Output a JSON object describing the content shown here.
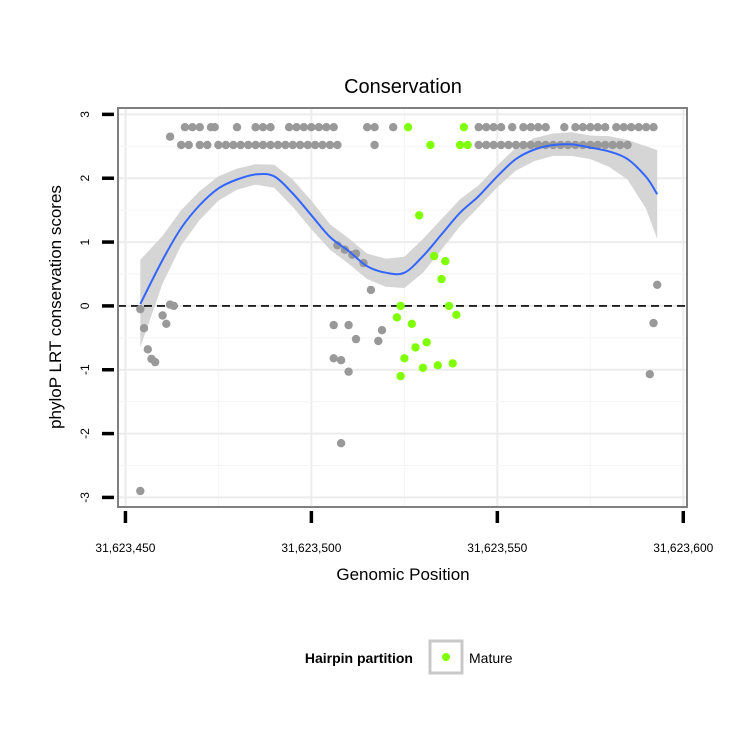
{
  "chart_data": {
    "type": "scatter",
    "title": "Conservation",
    "xlabel": "Genomic Position",
    "ylabel": "phyloP LRT conservation scores",
    "xlim": [
      31623448,
      31623601
    ],
    "ylim": [
      -3.15,
      3.1
    ],
    "x_ticks": [
      31623450,
      31623500,
      31623550,
      31623600
    ],
    "x_tick_labels": [
      "31,623,450",
      "31,623,500",
      "31,623,550",
      "31,623,600"
    ],
    "y_ticks": [
      -3,
      -2,
      -1,
      0,
      1,
      2,
      3
    ],
    "y_tick_labels": [
      "-3",
      "-2",
      "-1",
      "0",
      "1",
      "2",
      "3"
    ],
    "grid": true,
    "reference_line": {
      "y": 0,
      "style": "dashed"
    },
    "colors": {
      "other": "#999999",
      "mature": "#7fff00",
      "smooth": "#3366ff",
      "ribbon": "#d3d3d3",
      "panel_border": "#7f7f7f"
    },
    "legend": {
      "title": "Hairpin partition",
      "entries": [
        "Mature"
      ],
      "position": "bottom"
    },
    "smooth_line": {
      "x": [
        31623454,
        31623460,
        31623465,
        31623470,
        31623475,
        31623480,
        31623485,
        31623490,
        31623495,
        31623500,
        31623505,
        31623510,
        31623515,
        31623520,
        31623525,
        31623530,
        31623535,
        31623540,
        31623545,
        31623550,
        31623555,
        31623560,
        31623565,
        31623570,
        31623575,
        31623580,
        31623585,
        31623590,
        31623593
      ],
      "y": [
        0.03,
        0.72,
        1.22,
        1.58,
        1.84,
        1.98,
        2.06,
        2.03,
        1.76,
        1.42,
        1.08,
        0.86,
        0.62,
        0.52,
        0.52,
        0.78,
        1.12,
        1.46,
        1.72,
        2.03,
        2.3,
        2.45,
        2.52,
        2.53,
        2.48,
        2.42,
        2.3,
        2.02,
        1.75
      ]
    },
    "smooth_ribbon": {
      "x": [
        31623454,
        31623460,
        31623465,
        31623470,
        31623475,
        31623480,
        31623485,
        31623490,
        31623495,
        31623500,
        31623505,
        31623510,
        31623515,
        31623520,
        31623525,
        31623530,
        31623535,
        31623540,
        31623545,
        31623550,
        31623555,
        31623560,
        31623565,
        31623570,
        31623575,
        31623580,
        31623585,
        31623590,
        31623593
      ],
      "ymin": [
        -0.65,
        0.35,
        0.95,
        1.35,
        1.65,
        1.82,
        1.9,
        1.85,
        1.55,
        1.2,
        0.88,
        0.66,
        0.42,
        0.3,
        0.28,
        0.52,
        0.88,
        1.25,
        1.55,
        1.86,
        2.12,
        2.27,
        2.35,
        2.35,
        2.3,
        2.18,
        1.98,
        1.52,
        1.05
      ],
      "ymax": [
        0.72,
        1.1,
        1.5,
        1.8,
        2.03,
        2.15,
        2.22,
        2.21,
        1.98,
        1.65,
        1.28,
        1.06,
        0.82,
        0.74,
        0.77,
        1.05,
        1.36,
        1.67,
        1.89,
        2.2,
        2.48,
        2.63,
        2.7,
        2.72,
        2.67,
        2.66,
        2.6,
        2.5,
        2.44
      ]
    },
    "series": [
      {
        "name": "",
        "points": [
          [
            31623462,
            2.65
          ],
          [
            31623466,
            2.8
          ],
          [
            31623468,
            2.8
          ],
          [
            31623470,
            2.8
          ],
          [
            31623473,
            2.8
          ],
          [
            31623474,
            2.8
          ],
          [
            31623480,
            2.8
          ],
          [
            31623485,
            2.8
          ],
          [
            31623487,
            2.8
          ],
          [
            31623489,
            2.8
          ],
          [
            31623494,
            2.8
          ],
          [
            31623496,
            2.8
          ],
          [
            31623498,
            2.8
          ],
          [
            31623500,
            2.8
          ],
          [
            31623502,
            2.8
          ],
          [
            31623504,
            2.8
          ],
          [
            31623506,
            2.8
          ],
          [
            31623515,
            2.8
          ],
          [
            31623517,
            2.8
          ],
          [
            31623522,
            2.8
          ],
          [
            31623545,
            2.8
          ],
          [
            31623547,
            2.8
          ],
          [
            31623549,
            2.8
          ],
          [
            31623551,
            2.8
          ],
          [
            31623554,
            2.8
          ],
          [
            31623557,
            2.8
          ],
          [
            31623559,
            2.8
          ],
          [
            31623561,
            2.8
          ],
          [
            31623563,
            2.8
          ],
          [
            31623568,
            2.8
          ],
          [
            31623571,
            2.8
          ],
          [
            31623573,
            2.8
          ],
          [
            31623575,
            2.8
          ],
          [
            31623577,
            2.8
          ],
          [
            31623579,
            2.8
          ],
          [
            31623582,
            2.8
          ],
          [
            31623584,
            2.8
          ],
          [
            31623586,
            2.8
          ],
          [
            31623588,
            2.8
          ],
          [
            31623590,
            2.8
          ],
          [
            31623592,
            2.8
          ],
          [
            31623465,
            2.52
          ],
          [
            31623467,
            2.52
          ],
          [
            31623470,
            2.52
          ],
          [
            31623472,
            2.52
          ],
          [
            31623475,
            2.52
          ],
          [
            31623477,
            2.52
          ],
          [
            31623479,
            2.52
          ],
          [
            31623481,
            2.52
          ],
          [
            31623483,
            2.52
          ],
          [
            31623485,
            2.52
          ],
          [
            31623487,
            2.52
          ],
          [
            31623489,
            2.52
          ],
          [
            31623491,
            2.52
          ],
          [
            31623493,
            2.52
          ],
          [
            31623495,
            2.52
          ],
          [
            31623497,
            2.52
          ],
          [
            31623499,
            2.52
          ],
          [
            31623501,
            2.52
          ],
          [
            31623503,
            2.52
          ],
          [
            31623505,
            2.52
          ],
          [
            31623507,
            2.52
          ],
          [
            31623517,
            2.52
          ],
          [
            31623545,
            2.52
          ],
          [
            31623547,
            2.52
          ],
          [
            31623549,
            2.52
          ],
          [
            31623551,
            2.52
          ],
          [
            31623553,
            2.52
          ],
          [
            31623555,
            2.52
          ],
          [
            31623557,
            2.52
          ],
          [
            31623559,
            2.52
          ],
          [
            31623561,
            2.52
          ],
          [
            31623563,
            2.52
          ],
          [
            31623565,
            2.52
          ],
          [
            31623567,
            2.52
          ],
          [
            31623569,
            2.52
          ],
          [
            31623571,
            2.52
          ],
          [
            31623573,
            2.52
          ],
          [
            31623575,
            2.52
          ],
          [
            31623577,
            2.52
          ],
          [
            31623579,
            2.52
          ],
          [
            31623581,
            2.52
          ],
          [
            31623583,
            2.52
          ],
          [
            31623585,
            2.52
          ],
          [
            31623462,
            0.02
          ],
          [
            31623463,
            0.0
          ],
          [
            31623454,
            -0.05
          ],
          [
            31623455,
            -0.35
          ],
          [
            31623456,
            -0.68
          ],
          [
            31623457,
            -0.83
          ],
          [
            31623458,
            -0.88
          ],
          [
            31623460,
            -0.15
          ],
          [
            31623461,
            -0.28
          ],
          [
            31623507,
            0.95
          ],
          [
            31623509,
            0.88
          ],
          [
            31623511,
            0.8
          ],
          [
            31623512,
            0.82
          ],
          [
            31623514,
            0.67
          ],
          [
            31623516,
            0.25
          ],
          [
            31623506,
            -0.3
          ],
          [
            31623510,
            -0.3
          ],
          [
            31623512,
            -0.52
          ],
          [
            31623506,
            -0.82
          ],
          [
            31623508,
            -0.85
          ],
          [
            31623510,
            -1.03
          ],
          [
            31623508,
            -2.15
          ],
          [
            31623518,
            -0.55
          ],
          [
            31623519,
            -0.38
          ],
          [
            31623454,
            -2.9
          ],
          [
            31623593,
            0.33
          ],
          [
            31623592,
            -0.27
          ],
          [
            31623591,
            -1.07
          ]
        ]
      },
      {
        "name": "Mature",
        "points": [
          [
            31623526,
            2.8
          ],
          [
            31623541,
            2.8
          ],
          [
            31623532,
            2.52
          ],
          [
            31623540,
            2.52
          ],
          [
            31623542,
            2.52
          ],
          [
            31623529,
            1.42
          ],
          [
            31623533,
            0.78
          ],
          [
            31623536,
            0.7
          ],
          [
            31623535,
            0.42
          ],
          [
            31623524,
            0.0
          ],
          [
            31623537,
            0.0
          ],
          [
            31623523,
            -0.18
          ],
          [
            31623539,
            -0.14
          ],
          [
            31623527,
            -0.28
          ],
          [
            31623531,
            -0.57
          ],
          [
            31623528,
            -0.65
          ],
          [
            31623525,
            -0.82
          ],
          [
            31623538,
            -0.9
          ],
          [
            31623534,
            -0.93
          ],
          [
            31623530,
            -0.97
          ],
          [
            31623524,
            -1.1
          ]
        ]
      }
    ]
  }
}
